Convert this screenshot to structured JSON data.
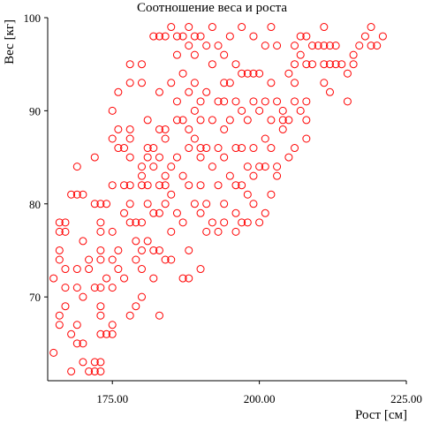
{
  "chart_data": {
    "type": "scatter",
    "title": "Соотношение веса и роста",
    "xlabel": "Рост [см]",
    "ylabel": "Вес [кг]",
    "xlim": [
      164,
      225
    ],
    "ylim": [
      61,
      100
    ],
    "x_ticks": [
      175,
      200,
      225
    ],
    "x_tick_labels": [
      "175.00",
      "200.00",
      "225.00"
    ],
    "y_ticks": [
      70,
      80,
      90,
      100
    ],
    "y_tick_labels": [
      "70",
      "80",
      "90",
      "100"
    ],
    "grid": false,
    "marker": "circle-open",
    "marker_color": "#ff0000",
    "points": [
      [
        165,
        64
      ],
      [
        165,
        72
      ],
      [
        166,
        75
      ],
      [
        166,
        74
      ],
      [
        166,
        78
      ],
      [
        166,
        77
      ],
      [
        166,
        68
      ],
      [
        166,
        67
      ],
      [
        167,
        78
      ],
      [
        167,
        77
      ],
      [
        167,
        73
      ],
      [
        167,
        71
      ],
      [
        167,
        69
      ],
      [
        168,
        81
      ],
      [
        168,
        66
      ],
      [
        168,
        62
      ],
      [
        169,
        84
      ],
      [
        169,
        81
      ],
      [
        169,
        73
      ],
      [
        169,
        71
      ],
      [
        169,
        67
      ],
      [
        169,
        65
      ],
      [
        170,
        81
      ],
      [
        170,
        76
      ],
      [
        170,
        70
      ],
      [
        170,
        65
      ],
      [
        170,
        63
      ],
      [
        171,
        74
      ],
      [
        171,
        73
      ],
      [
        171,
        62
      ],
      [
        172,
        85
      ],
      [
        172,
        80
      ],
      [
        172,
        71
      ],
      [
        172,
        63
      ],
      [
        172,
        62
      ],
      [
        173,
        80
      ],
      [
        173,
        78
      ],
      [
        173,
        77
      ],
      [
        173,
        75
      ],
      [
        173,
        74
      ],
      [
        173,
        71
      ],
      [
        173,
        69
      ],
      [
        173,
        68
      ],
      [
        173,
        66
      ],
      [
        173,
        63
      ],
      [
        173,
        62
      ],
      [
        174,
        80
      ],
      [
        174,
        72
      ],
      [
        174,
        66
      ],
      [
        175,
        90
      ],
      [
        175,
        87
      ],
      [
        175,
        82
      ],
      [
        175,
        77
      ],
      [
        175,
        74
      ],
      [
        175,
        71
      ],
      [
        175,
        67
      ],
      [
        175,
        66
      ],
      [
        176,
        92
      ],
      [
        176,
        88
      ],
      [
        176,
        86
      ],
      [
        176,
        75
      ],
      [
        176,
        73
      ],
      [
        177,
        86
      ],
      [
        177,
        82
      ],
      [
        177,
        79
      ],
      [
        177,
        72
      ],
      [
        178,
        95
      ],
      [
        178,
        93
      ],
      [
        178,
        88
      ],
      [
        178,
        87
      ],
      [
        178,
        85
      ],
      [
        178,
        82
      ],
      [
        178,
        80
      ],
      [
        178,
        78
      ],
      [
        178,
        68
      ],
      [
        179,
        78
      ],
      [
        179,
        76
      ],
      [
        179,
        74
      ],
      [
        179,
        69
      ],
      [
        180,
        95
      ],
      [
        180,
        93
      ],
      [
        180,
        84
      ],
      [
        180,
        83
      ],
      [
        180,
        82
      ],
      [
        180,
        78
      ],
      [
        180,
        75
      ],
      [
        180,
        73
      ],
      [
        180,
        70
      ],
      [
        181,
        89
      ],
      [
        181,
        86
      ],
      [
        181,
        85
      ],
      [
        181,
        82
      ],
      [
        181,
        80
      ],
      [
        181,
        76
      ],
      [
        182,
        98
      ],
      [
        182,
        86
      ],
      [
        182,
        84
      ],
      [
        182,
        79
      ],
      [
        182,
        75
      ],
      [
        182,
        72
      ],
      [
        183,
        98
      ],
      [
        183,
        92
      ],
      [
        183,
        88
      ],
      [
        183,
        85
      ],
      [
        183,
        82
      ],
      [
        183,
        79
      ],
      [
        183,
        75
      ],
      [
        183,
        68
      ],
      [
        184,
        98
      ],
      [
        184,
        88
      ],
      [
        184,
        87
      ],
      [
        184,
        83
      ],
      [
        184,
        82
      ],
      [
        184,
        80
      ],
      [
        184,
        74
      ],
      [
        185,
        99
      ],
      [
        185,
        93
      ],
      [
        185,
        84
      ],
      [
        185,
        81
      ],
      [
        185,
        77
      ],
      [
        185,
        74
      ],
      [
        186,
        98
      ],
      [
        186,
        96
      ],
      [
        186,
        91
      ],
      [
        186,
        89
      ],
      [
        186,
        85
      ],
      [
        186,
        79
      ],
      [
        187,
        98
      ],
      [
        187,
        94
      ],
      [
        187,
        89
      ],
      [
        187,
        83
      ],
      [
        187,
        78
      ],
      [
        187,
        72
      ],
      [
        188,
        99
      ],
      [
        188,
        97
      ],
      [
        188,
        92
      ],
      [
        188,
        88
      ],
      [
        188,
        86
      ],
      [
        188,
        82
      ],
      [
        188,
        75
      ],
      [
        188,
        72
      ],
      [
        189,
        98
      ],
      [
        189,
        96
      ],
      [
        189,
        93
      ],
      [
        189,
        90
      ],
      [
        189,
        87
      ],
      [
        189,
        80
      ],
      [
        190,
        98
      ],
      [
        190,
        91
      ],
      [
        190,
        89
      ],
      [
        190,
        86
      ],
      [
        190,
        85
      ],
      [
        190,
        82
      ],
      [
        190,
        79
      ],
      [
        190,
        73
      ],
      [
        191,
        97
      ],
      [
        191,
        92
      ],
      [
        191,
        86
      ],
      [
        191,
        80
      ],
      [
        191,
        77
      ],
      [
        192,
        99
      ],
      [
        192,
        95
      ],
      [
        192,
        89
      ],
      [
        192,
        84
      ],
      [
        192,
        78
      ],
      [
        193,
        97
      ],
      [
        193,
        91
      ],
      [
        193,
        86
      ],
      [
        193,
        82
      ],
      [
        193,
        77
      ],
      [
        194,
        96
      ],
      [
        194,
        93
      ],
      [
        194,
        91
      ],
      [
        194,
        88
      ],
      [
        194,
        85
      ],
      [
        194,
        80
      ],
      [
        194,
        78
      ],
      [
        195,
        98
      ],
      [
        195,
        93
      ],
      [
        195,
        89
      ],
      [
        195,
        83
      ],
      [
        196,
        95
      ],
      [
        196,
        91
      ],
      [
        196,
        86
      ],
      [
        196,
        82
      ],
      [
        196,
        79
      ],
      [
        196,
        77
      ],
      [
        197,
        99
      ],
      [
        197,
        94
      ],
      [
        197,
        90
      ],
      [
        197,
        86
      ],
      [
        197,
        82
      ],
      [
        197,
        78
      ],
      [
        198,
        94
      ],
      [
        198,
        89
      ],
      [
        198,
        84
      ],
      [
        198,
        81
      ],
      [
        198,
        78
      ],
      [
        199,
        98
      ],
      [
        199,
        94
      ],
      [
        199,
        91
      ],
      [
        199,
        86
      ],
      [
        199,
        83
      ],
      [
        199,
        80
      ],
      [
        200,
        94
      ],
      [
        200,
        90
      ],
      [
        200,
        84
      ],
      [
        200,
        78
      ],
      [
        201,
        97
      ],
      [
        201,
        91
      ],
      [
        201,
        87
      ],
      [
        201,
        84
      ],
      [
        201,
        79
      ],
      [
        202,
        99
      ],
      [
        202,
        93
      ],
      [
        202,
        89
      ],
      [
        202,
        86
      ],
      [
        202,
        81
      ],
      [
        203,
        97
      ],
      [
        203,
        91
      ],
      [
        203,
        84
      ],
      [
        203,
        83
      ],
      [
        204,
        90
      ],
      [
        204,
        89
      ],
      [
        204,
        88
      ],
      [
        205,
        94
      ],
      [
        205,
        89
      ],
      [
        205,
        85
      ],
      [
        206,
        97
      ],
      [
        206,
        95
      ],
      [
        206,
        93
      ],
      [
        206,
        91
      ],
      [
        206,
        86
      ],
      [
        207,
        98
      ],
      [
        207,
        96
      ],
      [
        207,
        90
      ],
      [
        208,
        98
      ],
      [
        208,
        95
      ],
      [
        208,
        91
      ],
      [
        208,
        89
      ],
      [
        208,
        87
      ],
      [
        209,
        97
      ],
      [
        209,
        95
      ],
      [
        210,
        97
      ],
      [
        211,
        99
      ],
      [
        211,
        97
      ],
      [
        211,
        95
      ],
      [
        211,
        93
      ],
      [
        212,
        97
      ],
      [
        212,
        95
      ],
      [
        212,
        92
      ],
      [
        213,
        97
      ],
      [
        213,
        95
      ],
      [
        214,
        95
      ],
      [
        215,
        94
      ],
      [
        215,
        91
      ],
      [
        216,
        96
      ],
      [
        216,
        95
      ],
      [
        217,
        97
      ],
      [
        218,
        98
      ],
      [
        219,
        99
      ],
      [
        219,
        97
      ],
      [
        220,
        97
      ],
      [
        221,
        98
      ]
    ]
  }
}
